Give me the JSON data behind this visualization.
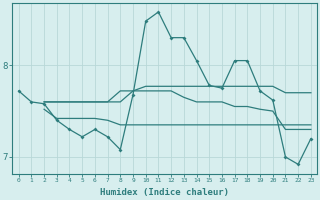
{
  "xlabel": "Humidex (Indice chaleur)",
  "bg_color": "#d7eeee",
  "grid_color": "#b8d8d8",
  "line_color": "#2e7d7d",
  "xlim": [
    -0.5,
    23.5
  ],
  "ylim": [
    6.82,
    8.68
  ],
  "yticks": [
    7,
    8
  ],
  "xticks": [
    0,
    1,
    2,
    3,
    4,
    5,
    6,
    7,
    8,
    9,
    10,
    11,
    12,
    13,
    14,
    15,
    16,
    17,
    18,
    19,
    20,
    21,
    22,
    23
  ],
  "line1_x": [
    0,
    1,
    2,
    3,
    4,
    5,
    6,
    7,
    8,
    9,
    10,
    11,
    12,
    13,
    14,
    15,
    16,
    17,
    18,
    19,
    20,
    21,
    22,
    23
  ],
  "line1_y": [
    7.72,
    7.6,
    7.58,
    7.4,
    7.3,
    7.22,
    7.3,
    7.22,
    7.08,
    7.68,
    8.48,
    8.58,
    8.3,
    8.3,
    8.05,
    7.78,
    7.75,
    8.05,
    8.05,
    7.72,
    7.62,
    7.0,
    6.92,
    7.2
  ],
  "line2_x": [
    2,
    3,
    4,
    5,
    6,
    7,
    8,
    9,
    10,
    11,
    12,
    13,
    14,
    15,
    16,
    17,
    18,
    19,
    20,
    21,
    22,
    23
  ],
  "line2_y": [
    7.6,
    7.6,
    7.6,
    7.6,
    7.6,
    7.6,
    7.6,
    7.72,
    7.77,
    7.77,
    7.77,
    7.77,
    7.77,
    7.77,
    7.77,
    7.77,
    7.77,
    7.77,
    7.77,
    7.7,
    7.7,
    7.7
  ],
  "line3_x": [
    2,
    3,
    4,
    5,
    6,
    7,
    8,
    9,
    10,
    11,
    12,
    13,
    14,
    15,
    16,
    17,
    18,
    19,
    20,
    21,
    22,
    23
  ],
  "line3_y": [
    7.6,
    7.6,
    7.6,
    7.6,
    7.6,
    7.6,
    7.72,
    7.72,
    7.72,
    7.72,
    7.72,
    7.65,
    7.6,
    7.6,
    7.6,
    7.55,
    7.55,
    7.52,
    7.5,
    7.3,
    7.3,
    7.3
  ],
  "line4_x": [
    2,
    3,
    4,
    5,
    6,
    7,
    8,
    9,
    10,
    11,
    12,
    13,
    14,
    15,
    16,
    17,
    18,
    19,
    20,
    21,
    22,
    23
  ],
  "line4_y": [
    7.52,
    7.42,
    7.42,
    7.42,
    7.42,
    7.4,
    7.35,
    7.35,
    7.35,
    7.35,
    7.35,
    7.35,
    7.35,
    7.35,
    7.35,
    7.35,
    7.35,
    7.35,
    7.35,
    7.35,
    7.35,
    7.35
  ]
}
